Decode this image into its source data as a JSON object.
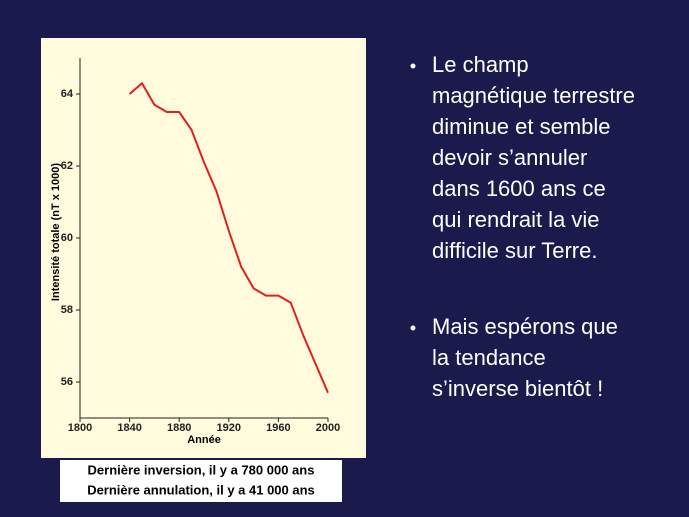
{
  "chart_data": {
    "type": "line",
    "y_label": "Intensité totale (nT x 1000)",
    "x_label": "Année",
    "x": [
      1840,
      1850,
      1860,
      1870,
      1880,
      1890,
      1900,
      1910,
      1920,
      1930,
      1940,
      1950,
      1960,
      1970,
      1980,
      1990,
      2000
    ],
    "series": [
      {
        "color": "#e02020",
        "values": [
          64.0,
          64.3,
          63.7,
          63.5,
          63.5,
          63.0,
          62.1,
          61.3,
          60.2,
          59.2,
          58.6,
          58.4,
          58.4,
          58.2,
          57.3,
          56.5,
          55.7
        ]
      }
    ],
    "xlim": [
      1800,
      2000
    ],
    "xticks": [
      1800,
      1840,
      1880,
      1920,
      1960,
      2000
    ],
    "ylim": [
      55,
      65
    ],
    "yticks": [
      56,
      58,
      60,
      62,
      64
    ]
  },
  "caption": [
    "Dernière inversion, il y a 780 000 ans",
    "Dernière annulation, il y a 41 000 ans"
  ],
  "bullets": [
    [
      "Le champ",
      "magnétique terrestre",
      "diminue et semble",
      "devoir s’annuler",
      "dans 1600 ans ce",
      "qui rendrait la vie",
      "difficile sur Terre."
    ],
    [
      "Mais espérons que",
      "la tendance",
      "s’inverse bientôt !"
    ]
  ]
}
